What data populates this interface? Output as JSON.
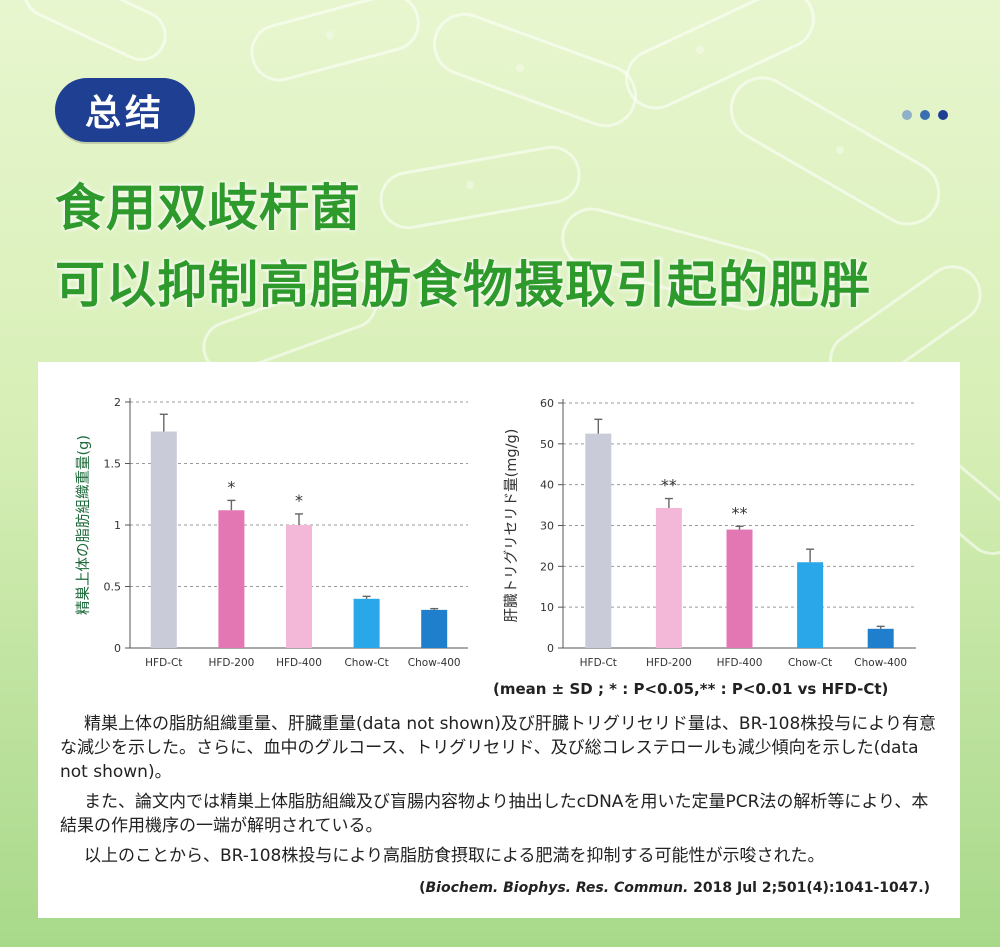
{
  "header": {
    "badge_label": "总结",
    "headline_line1": "食用双歧杆菌",
    "headline_line2": "可以抑制高脂肪食物摄取引起的肥胖"
  },
  "page_indicator": {
    "dot_colors": [
      "#8fb0c8",
      "#3a6fb0",
      "#1f3f92"
    ]
  },
  "colors": {
    "background": "#d7efb6",
    "headline": "#2f9a2c",
    "badge": "#1f3f92",
    "HFD-Ct": "#c9cbd8",
    "HFD-200": "#e377b3",
    "HFD-400": "#f3b7d8",
    "Chow-Ct": "#29a7e8",
    "Chow-400": "#1f7fcc"
  },
  "chart_data": [
    {
      "type": "bar",
      "ylabel": "精巣上体の脂肪組織重量(g)",
      "xlabel": "",
      "ylim": [
        0,
        2
      ],
      "yticks": [
        "0",
        "0.5",
        "1",
        "1.5",
        "2"
      ],
      "ytick_values": [
        0,
        0.5,
        1,
        1.5,
        2
      ],
      "grid": "dashed horizontal",
      "categories": [
        "HFD-Ct",
        "HFD-200",
        "HFD-400",
        "Chow-Ct",
        "Chow-400"
      ],
      "values": [
        1.76,
        1.12,
        1.0,
        0.4,
        0.31
      ],
      "errors": [
        0.14,
        0.08,
        0.09,
        0.02,
        0.01
      ],
      "significance": [
        "",
        "*",
        "*",
        "",
        ""
      ],
      "bar_colors": [
        "#c9cbd8",
        "#e377b3",
        "#f3b7d8",
        "#29a7e8",
        "#1f7fcc"
      ]
    },
    {
      "type": "bar",
      "ylabel": "肝臓トリグリセリド量(mg/g)",
      "xlabel": "",
      "ylim": [
        0,
        60
      ],
      "yticks": [
        "0",
        "10",
        "20",
        "30",
        "40",
        "50",
        "60"
      ],
      "ytick_values": [
        0,
        10,
        20,
        30,
        40,
        50,
        60
      ],
      "grid": "dashed horizontal",
      "categories": [
        "HFD-Ct",
        "HFD-200",
        "HFD-400",
        "Chow-Ct",
        "Chow-400"
      ],
      "values": [
        52.5,
        34.3,
        29.0,
        21.0,
        4.7
      ],
      "errors": [
        3.5,
        2.3,
        0.8,
        3.2,
        0.6
      ],
      "significance": [
        "",
        "**",
        "**",
        "",
        ""
      ],
      "bar_colors": [
        "#c9cbd8",
        "#f3b7d8",
        "#e377b3",
        "#29a7e8",
        "#1f7fcc"
      ]
    }
  ],
  "footnote": "(mean ± SD ; * : P<0.05,** : P<0.01 vs HFD-Ct)",
  "paragraphs": [
    "精巣上体の脂肪組織重量、肝臓重量(data not shown)及び肝臓トリグリセリド量は、BR-108株投与により有意な減少を示した。さらに、血中のグルコース、トリグリセリド、及び総コレステロールも減少傾向を示した(data not shown)。",
    "また、論文内では精巣上体脂肪組織及び盲腸内容物より抽出したcDNAを用いた定量PCR法の解析等により、本結果の作用機序の一端が解明されている。",
    "以上のことから、BR-108株投与により高脂肪食摂取による肥満を抑制する可能性が示唆された。"
  ],
  "citation": {
    "open": "(",
    "journal": "Biochem. Biophys. Res. Commun.",
    "details": " 2018 Jul 2;501(4):1041-1047.",
    "close": ")"
  }
}
